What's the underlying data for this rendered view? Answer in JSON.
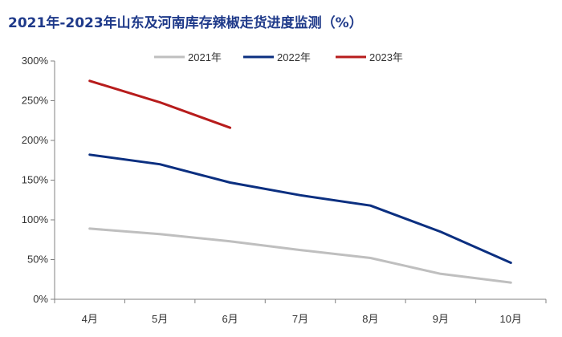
{
  "chart_data": {
    "type": "line",
    "title": "2021年-2023年山东及河南库存辣椒走货进度监测（%）",
    "categories": [
      "4月",
      "5月",
      "6月",
      "7月",
      "8月",
      "9月",
      "10月"
    ],
    "y_tick_labels": [
      "0%",
      "50%",
      "100%",
      "150%",
      "200%",
      "250%",
      "300%"
    ],
    "ylim": [
      0,
      300
    ],
    "grid": false,
    "legend_position": "top",
    "series": [
      {
        "name": "2021年",
        "color": "#bfbfbf",
        "values": [
          89,
          82,
          73,
          62,
          52,
          32,
          21
        ]
      },
      {
        "name": "2022年",
        "color": "#0b2f80",
        "values": [
          182,
          170,
          147,
          131,
          118,
          85,
          46
        ]
      },
      {
        "name": "2023年",
        "color": "#b71c1c",
        "values": [
          275,
          248,
          216,
          null,
          null,
          null,
          null
        ]
      }
    ]
  }
}
